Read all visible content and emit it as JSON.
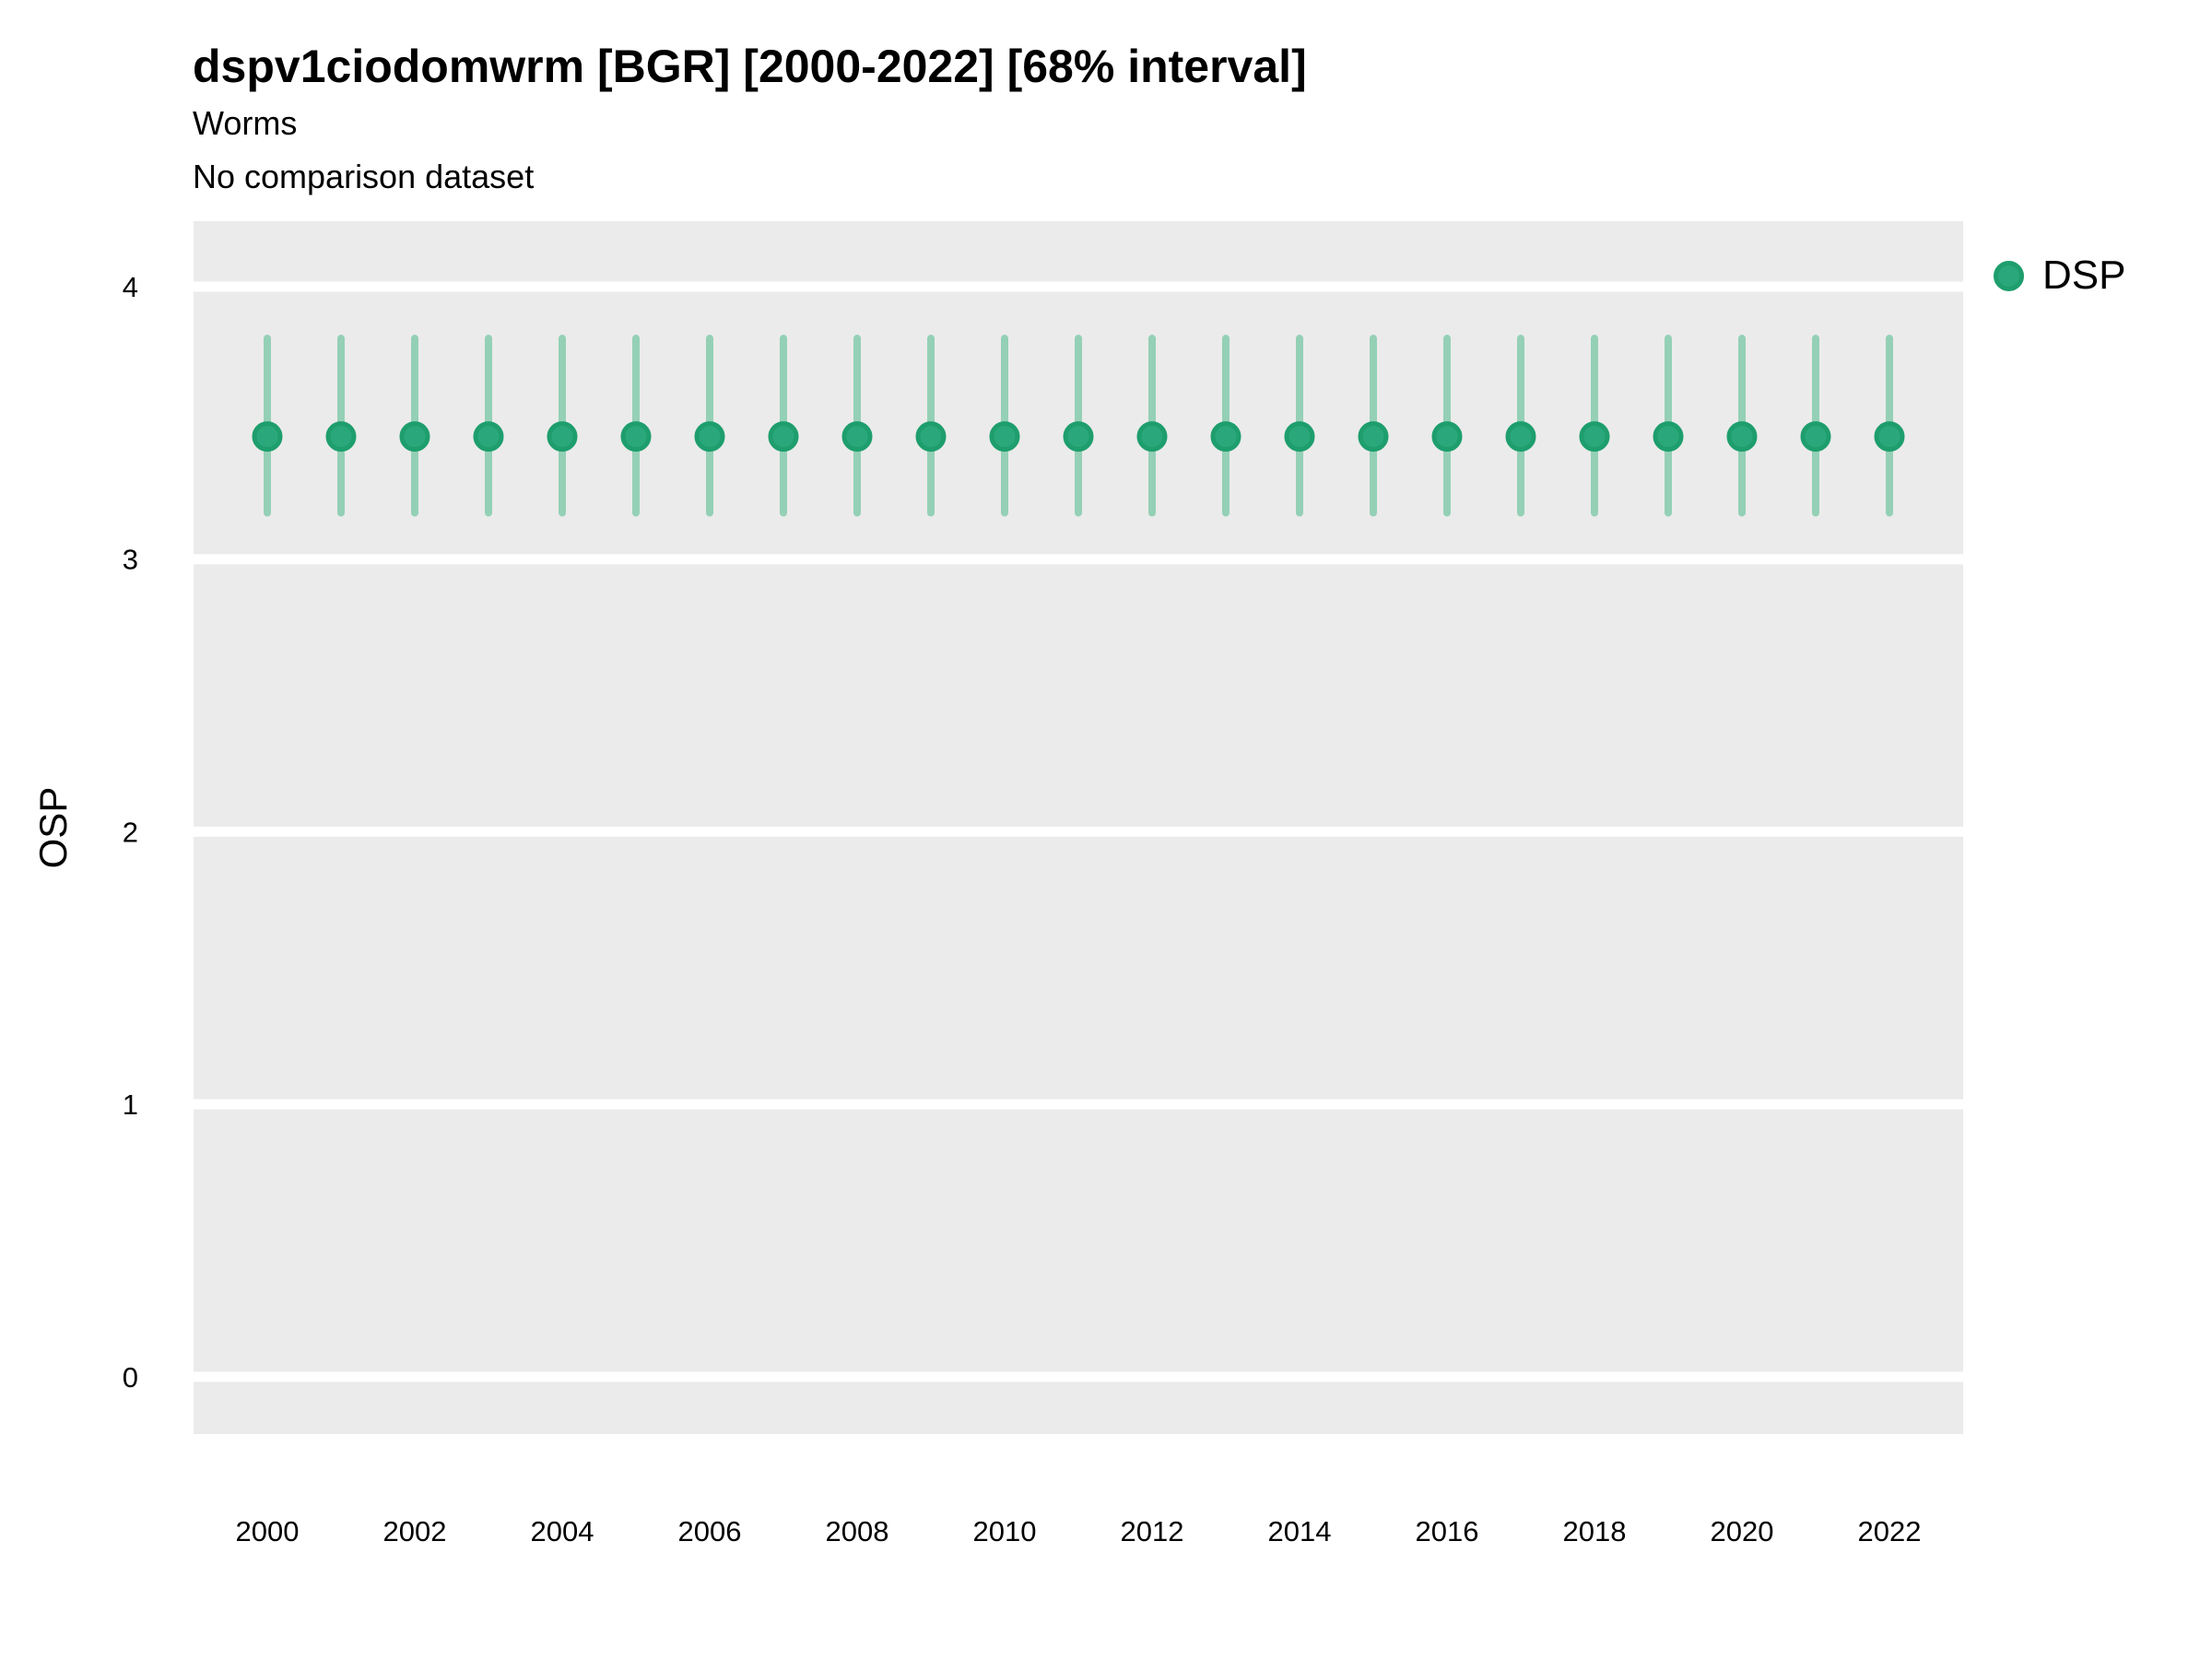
{
  "title": "dspv1ciodomwrm [BGR] [2000-2022] [68% interval]",
  "subtitle": "Worms",
  "comparison_note": "No comparison dataset",
  "legend": {
    "items": [
      {
        "label": "DSP"
      }
    ]
  },
  "colors": {
    "point_fill": "#2aa87b",
    "point_stroke": "#1e9e6d",
    "interval": "#94d0b6",
    "panel_background": "#ebebeb",
    "gridline": "#ffffff",
    "text": "#000000"
  },
  "chart_data": {
    "type": "scatter",
    "title": "dspv1ciodomwrm [BGR] [2000-2022] [68% interval]",
    "subtitle": "Worms",
    "note": "No comparison dataset",
    "xlabel": "",
    "ylabel": "OSP",
    "interval": "68%",
    "xlim": [
      1999,
      2023
    ],
    "ylim": [
      -0.21,
      4.24
    ],
    "x_ticks": [
      2000,
      2002,
      2004,
      2006,
      2008,
      2010,
      2012,
      2014,
      2016,
      2018,
      2020,
      2022
    ],
    "y_ticks": [
      0,
      1,
      2,
      3,
      4
    ],
    "grid": "major-horizontal-only",
    "legend_position": "right-top",
    "series": [
      {
        "name": "DSP",
        "x": [
          2000,
          2001,
          2002,
          2003,
          2004,
          2005,
          2006,
          2007,
          2008,
          2009,
          2010,
          2011,
          2012,
          2013,
          2014,
          2015,
          2016,
          2017,
          2018,
          2019,
          2020,
          2021,
          2022
        ],
        "y": [
          3.45,
          3.45,
          3.45,
          3.45,
          3.45,
          3.45,
          3.45,
          3.45,
          3.45,
          3.45,
          3.45,
          3.45,
          3.45,
          3.45,
          3.45,
          3.45,
          3.45,
          3.45,
          3.45,
          3.45,
          3.45,
          3.45,
          3.45
        ],
        "lo": [
          3.17,
          3.17,
          3.17,
          3.17,
          3.17,
          3.17,
          3.17,
          3.17,
          3.17,
          3.17,
          3.17,
          3.17,
          3.17,
          3.17,
          3.17,
          3.17,
          3.17,
          3.17,
          3.17,
          3.17,
          3.17,
          3.17,
          3.17
        ],
        "hi": [
          3.81,
          3.81,
          3.81,
          3.81,
          3.81,
          3.81,
          3.81,
          3.81,
          3.81,
          3.81,
          3.81,
          3.81,
          3.81,
          3.81,
          3.81,
          3.81,
          3.81,
          3.81,
          3.81,
          3.81,
          3.81,
          3.81,
          3.81
        ]
      }
    ]
  }
}
